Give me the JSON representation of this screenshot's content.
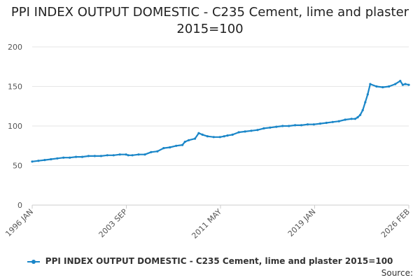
{
  "chart_data": {
    "type": "line",
    "title": "PPI INDEX OUTPUT DOMESTIC - C235 Cement, lime and plaster 2015=100",
    "title_lines": [
      "PPI INDEX OUTPUT DOMESTIC - C235 Cement, lime and plaster",
      "2015=100"
    ],
    "xlabel": "",
    "ylabel": "",
    "ylim": [
      0,
      200
    ],
    "yticks": [
      "0",
      "50",
      "100",
      "150",
      "200"
    ],
    "xtick_labels": [
      "1996 JAN",
      "2003 SEP",
      "2011 MAY",
      "2019 JAN",
      "2026 FEB"
    ],
    "grid": true,
    "legend_placement": "bottom",
    "series": [
      {
        "name": "PPI INDEX OUTPUT DOMESTIC - C235 Cement, lime and plaster 2015=100",
        "color": "#1a86c8",
        "x": [
          1996.0,
          1996.5,
          1997.0,
          1997.5,
          1998.0,
          1998.5,
          1999.0,
          1999.5,
          2000.0,
          2000.5,
          2001.0,
          2001.5,
          2002.0,
          2002.5,
          2003.0,
          2003.5,
          2003.67,
          2004.0,
          2004.5,
          2005.0,
          2005.5,
          2006.0,
          2006.5,
          2007.0,
          2007.5,
          2008.0,
          2008.2,
          2008.5,
          2009.0,
          2009.3,
          2009.6,
          2010.0,
          2010.5,
          2011.0,
          2011.33,
          2011.6,
          2012.0,
          2012.5,
          2013.0,
          2013.5,
          2014.0,
          2014.5,
          2015.0,
          2015.5,
          2016.0,
          2016.5,
          2017.0,
          2017.5,
          2018.0,
          2018.5,
          2019.0,
          2019.5,
          2020.0,
          2020.5,
          2021.0,
          2021.5,
          2021.8,
          2022.0,
          2022.2,
          2022.4,
          2022.6,
          2022.8,
          2023.0,
          2023.5,
          2024.0,
          2024.5,
          2025.0,
          2025.4,
          2025.6,
          2025.8,
          2026.08
        ],
        "values": [
          55,
          56,
          57,
          58,
          59,
          60,
          60,
          61,
          61,
          62,
          62,
          62,
          63,
          63,
          64,
          64,
          63,
          63,
          64,
          64,
          67,
          68,
          72,
          73,
          75,
          76,
          80,
          82,
          84,
          91,
          89,
          87,
          86,
          86,
          87,
          88,
          89,
          92,
          93,
          94,
          95,
          97,
          98,
          99,
          100,
          100,
          101,
          101,
          102,
          102,
          103,
          104,
          105,
          106,
          108,
          109,
          109,
          111,
          114,
          120,
          130,
          140,
          153,
          150,
          149,
          150,
          153,
          157,
          152,
          153,
          152
        ]
      }
    ]
  },
  "legend": {
    "label": "PPI INDEX OUTPUT DOMESTIC - C235 Cement, lime and plaster 2015=100"
  },
  "source_label": "Source:"
}
